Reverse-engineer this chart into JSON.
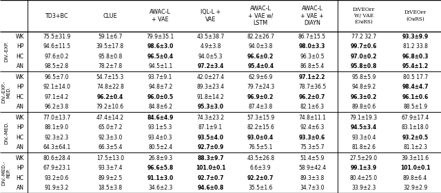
{
  "col_headers": [
    "TD3+BC",
    "CLUE",
    "AWAC-L\n+ VAE",
    "IQL-L +\nVAE",
    "AWAC-L\n+ VAE w/\nLSTM",
    "AWAC-L\n+ VAE +\nDIAYN",
    "DɪVEOғғ\nW/ VAE\n(OᴚRS)",
    "DɪVEOғғ\n(OᴚRS)"
  ],
  "row_groups": [
    "DIV.-EXP.",
    "DIV.-EXP.-\nMED.",
    "DIV.-MED.",
    "DIV.-MED.-\nREP."
  ],
  "row_labels": [
    "WK",
    "HP",
    "HC",
    "AN"
  ],
  "data": [
    [
      [
        "75.5±31.9",
        "94.6±11.5",
        "97.6±0.2",
        "98.5±2.8"
      ],
      [
        "59.1±6.7",
        "39.5±17.8",
        "95.8±0.8",
        "78.2±7.8"
      ],
      [
        "79.9±35.1",
        "98.6±3.0",
        "96.5±0.4",
        "94.5±1.1"
      ],
      [
        "43.5±38.7",
        "4.9±3.8",
        "94.0±5.3",
        "97.2±3.4"
      ],
      [
        "82.2±26.7",
        "94.0±3.8",
        "96.6±0.2",
        "95.4±0.4"
      ],
      [
        "86.7±15.5",
        "98.0±3.3",
        "96.3±0.5",
        "86.8±5.4"
      ],
      [
        "77.2 32.7",
        "99.7±0.6",
        "97.0±0.2",
        "95.8±0.8"
      ],
      [
        "93.3±9.9",
        "81.2 33.8",
        "96.8±0.3",
        "95.4±1.2"
      ]
    ],
    [
      [
        "96.5±7.0",
        "92.1±14.0",
        "97.1±4.2",
        "96.2±3.8"
      ],
      [
        "54.7±15.3",
        "74.8±22.8",
        "96.2±0.4",
        "79.2±10.6"
      ],
      [
        "93.7±9.1",
        "94.8±7.2",
        "96.0±0.5",
        "84.8±6.2"
      ],
      [
        "42.0±27.4",
        "89.3±23.4",
        "91.8±14.2",
        "95.3±3.0"
      ],
      [
        "62.9±6.9",
        "79.7±24.3",
        "96.9±0.2",
        "87.4±3.8"
      ],
      [
        "97.1±2.2",
        "78.7±36.5",
        "96.2±0.7",
        "82.1±6.3"
      ],
      [
        "95.8±5.9",
        "94.8±9.2",
        "96.3±0.2",
        "89.8±0.6"
      ],
      [
        "80.5 17.7",
        "98.4±4.7",
        "96.1±0.6",
        "88.5±1.9"
      ]
    ],
    [
      [
        "77.0±13.7",
        "88.1±9.0",
        "92.3±2.3",
        "64.3±64.1"
      ],
      [
        "47.4±14.2",
        "65.0±7.2",
        "92.3±3.0",
        "66.3±5.4"
      ],
      [
        "84.6±4.9",
        "93.1±5.3",
        "93.4±0.3",
        "80.5±2.4"
      ],
      [
        "74.3±23.2",
        "87.1±9.1",
        "93.5±4.0",
        "92.7±0.9"
      ],
      [
        "57.3±15.9",
        "82.2±15.6",
        "93.0±0.4",
        "76.5±5.1"
      ],
      [
        "74.8±11.1",
        "92.4±6.3",
        "93.3±0.6",
        "75.3±5.7"
      ],
      [
        "79.1±19.3",
        "94.5±3.4",
        "93.3±0.4",
        "81.8±2.6"
      ],
      [
        "67.9±17.4",
        "83.1±18.0",
        "93.2±0.5",
        "81.1±2.3"
      ]
    ],
    [
      [
        "80.6±28.4",
        "67.9±23.1",
        "93.2±0.6",
        "91.9±3.2"
      ],
      [
        "17.5±13.0",
        "93.3±7.4",
        "89.9±2.5",
        "18.5±3.8"
      ],
      [
        "26.8±9.3",
        "96.6±5.8",
        "91.1±3.0",
        "34.6±2.3"
      ],
      [
        "88.3±9.7",
        "101.0±0.1",
        "92.7±0.7",
        "94.6±0.8"
      ],
      [
        "43.5±26.8",
        "6.6±3.9",
        "92.2±0.7",
        "35.5±1.6"
      ],
      [
        "51.4±5.9",
        "58.9±42.4",
        "89.3±3.8",
        "34.7±3.0"
      ],
      [
        "27.5±29.0",
        "99.1±3.9",
        "80.4±25.0",
        "33.9±2.3"
      ],
      [
        "39.3±11.6",
        "101.0±0.1",
        "89.8±6.4",
        "32.9±2.9"
      ]
    ]
  ],
  "bold": [
    [
      [
        false,
        false,
        false,
        false
      ],
      [
        false,
        false,
        false,
        false
      ],
      [
        false,
        true,
        true,
        false
      ],
      [
        false,
        false,
        false,
        true
      ],
      [
        false,
        false,
        true,
        true
      ],
      [
        false,
        true,
        false,
        false
      ],
      [
        false,
        true,
        true,
        true
      ],
      [
        true,
        false,
        true,
        true
      ]
    ],
    [
      [
        false,
        false,
        false,
        false
      ],
      [
        false,
        false,
        true,
        false
      ],
      [
        false,
        false,
        true,
        false
      ],
      [
        false,
        false,
        false,
        true
      ],
      [
        false,
        false,
        true,
        false
      ],
      [
        true,
        false,
        true,
        false
      ],
      [
        false,
        false,
        true,
        false
      ],
      [
        false,
        true,
        true,
        false
      ]
    ],
    [
      [
        false,
        false,
        false,
        false
      ],
      [
        false,
        false,
        false,
        false
      ],
      [
        true,
        false,
        false,
        false
      ],
      [
        false,
        false,
        true,
        true
      ],
      [
        false,
        false,
        true,
        false
      ],
      [
        false,
        false,
        true,
        false
      ],
      [
        false,
        true,
        false,
        false
      ],
      [
        false,
        false,
        true,
        false
      ]
    ],
    [
      [
        false,
        false,
        false,
        false
      ],
      [
        false,
        false,
        false,
        false
      ],
      [
        false,
        true,
        true,
        false
      ],
      [
        true,
        true,
        true,
        true
      ],
      [
        false,
        false,
        true,
        false
      ],
      [
        false,
        false,
        false,
        false
      ],
      [
        false,
        true,
        false,
        false
      ],
      [
        false,
        true,
        false,
        false
      ]
    ]
  ]
}
